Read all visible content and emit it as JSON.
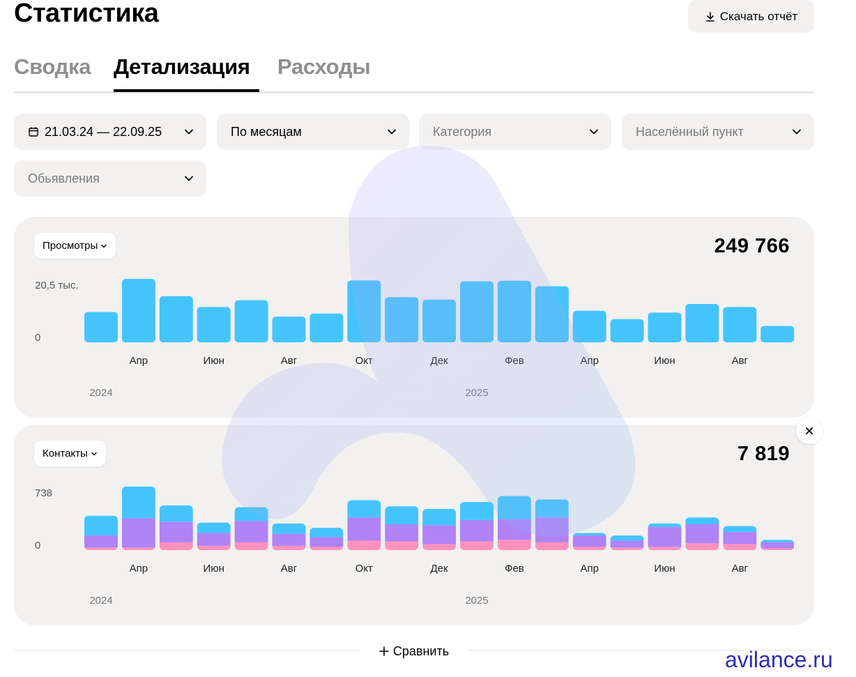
{
  "page": {
    "title": "Статистика"
  },
  "header": {
    "download_label": "Скачать отчёт"
  },
  "tabs": [
    {
      "label": "Сводка",
      "active": false
    },
    {
      "label": "Детализация",
      "active": true
    },
    {
      "label": "Расходы",
      "active": false
    }
  ],
  "filters": {
    "date_range": "21.03.24 — 22.09.25",
    "grouping": "По месяцам",
    "category_placeholder": "Категория",
    "city_placeholder": "Населённый пункт",
    "ads_placeholder": "Обьявления"
  },
  "compare_label": "Сравнить",
  "watermark": "avilance.ru",
  "colors": {
    "blue": "#45c4fb",
    "purple": "#b083f7",
    "pink": "#ff91bd",
    "card": "#f2f1f0"
  },
  "chart_data": [
    {
      "type": "bar",
      "metric_label": "Просмотры",
      "total": "249 766",
      "y_ticks": [
        "20,5 тыс.",
        "0"
      ],
      "ylim": [
        0,
        20500
      ],
      "categories": [
        "Мар 2024",
        "Апр 2024",
        "Май 2024",
        "Июн 2024",
        "Июл 2024",
        "Авг 2024",
        "Сен 2024",
        "Окт 2024",
        "Ноя 2024",
        "Дек 2024",
        "Янв 2025",
        "Фев 2025",
        "Мар 2025",
        "Апр 2025",
        "Май 2025",
        "Июн 2025",
        "Июл 2025",
        "Авг 2025",
        "Сен 2025"
      ],
      "x_tick_labels": [
        "Апр",
        "Июн",
        "Авг",
        "Окт",
        "Дек",
        "Фев",
        "Апр",
        "Июн",
        "Авг"
      ],
      "year_labels": [
        "2024",
        "2025"
      ],
      "series": [
        {
          "values": [
            9800,
            20500,
            14900,
            11400,
            13600,
            8300,
            9300,
            20000,
            14600,
            13800,
            19700,
            19900,
            18100,
            10200,
            7500,
            9600,
            12400,
            11400,
            5300
          ]
        }
      ]
    },
    {
      "type": "bar",
      "stacked": true,
      "metric_label": "Контакты",
      "total": "7 819",
      "y_ticks": [
        "738",
        "0"
      ],
      "ylim": [
        0,
        738
      ],
      "categories": [
        "Мар 2024",
        "Апр 2024",
        "Май 2024",
        "Июн 2024",
        "Июл 2024",
        "Авг 2024",
        "Сен 2024",
        "Окт 2024",
        "Ноя 2024",
        "Дек 2024",
        "Янв 2025",
        "Фев 2025",
        "Мар 2025",
        "Апр 2025",
        "Май 2025",
        "Июн 2025",
        "Июл 2025",
        "Авг 2025",
        "Сен 2025"
      ],
      "x_tick_labels": [
        "Апр",
        "Июн",
        "Авг",
        "Окт",
        "Дек",
        "Фев",
        "Апр",
        "Июн",
        "Авг"
      ],
      "year_labels": [
        "2024",
        "2025"
      ],
      "series": [
        {
          "values": [
            30,
            30,
            90,
            50,
            90,
            50,
            40,
            110,
            100,
            70,
            100,
            120,
            90,
            40,
            30,
            40,
            80,
            70,
            20
          ]
        },
        {
          "values": [
            140,
            340,
            240,
            150,
            250,
            140,
            110,
            270,
            200,
            220,
            250,
            240,
            290,
            130,
            80,
            230,
            220,
            140,
            70
          ]
        },
        {
          "values": [
            230,
            370,
            190,
            120,
            160,
            120,
            110,
            200,
            210,
            190,
            210,
            270,
            210,
            30,
            60,
            40,
            80,
            70,
            30
          ]
        }
      ]
    }
  ]
}
